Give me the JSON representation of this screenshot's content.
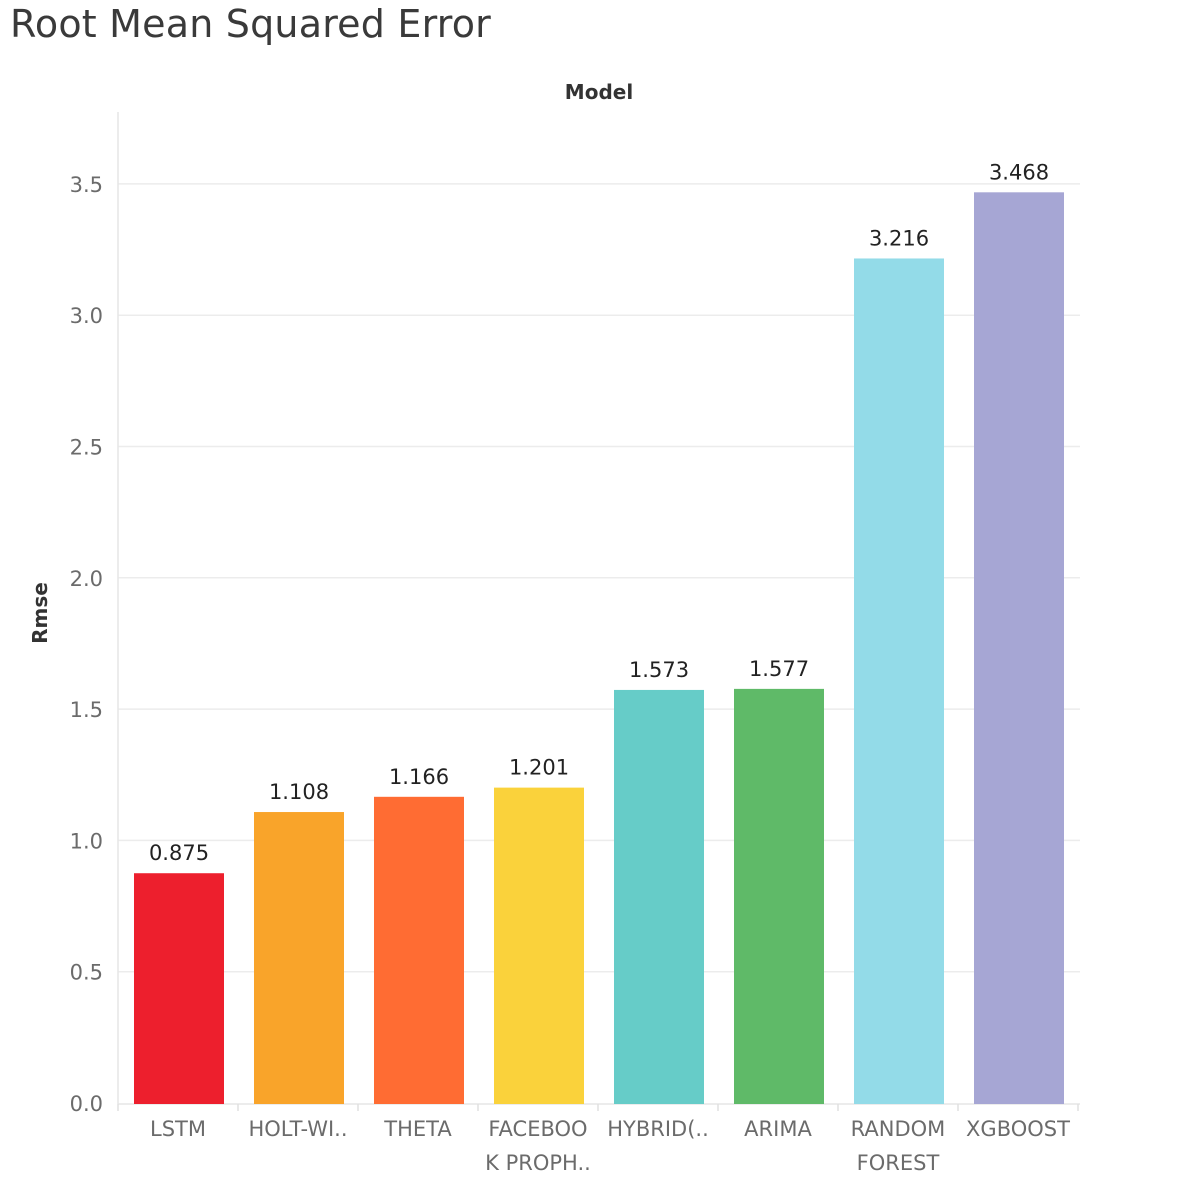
{
  "chart_data": {
    "type": "bar",
    "title": "Root Mean Squared Error",
    "xlabel": "Model",
    "ylabel": "Rmse",
    "categories": [
      [
        "LSTM"
      ],
      [
        "HOLT-WI.."
      ],
      [
        "THETA"
      ],
      [
        "FACEBOO",
        "K PROPH.."
      ],
      [
        "HYBRID(.."
      ],
      [
        "ARIMA"
      ],
      [
        "RANDOM",
        "FOREST"
      ],
      [
        "XGBOOST"
      ]
    ],
    "values": [
      0.875,
      1.108,
      1.166,
      1.201,
      1.573,
      1.577,
      3.216,
      3.468
    ],
    "data_labels": [
      "0.875",
      "1.108",
      "1.166",
      "1.201",
      "1.573",
      "1.577",
      "3.216",
      "3.468"
    ],
    "colors": [
      "#ed1f2d",
      "#f9a42a",
      "#ff6c33",
      "#fad23b",
      "#66ccc8",
      "#5fba68",
      "#93dbe8",
      "#a6a6d4"
    ],
    "yticks": [
      0.0,
      0.5,
      1.0,
      1.5,
      2.0,
      2.5,
      3.0,
      3.5
    ],
    "ytick_labels": [
      "0.0",
      "0.5",
      "1.0",
      "1.5",
      "2.0",
      "2.5",
      "3.0",
      "3.5"
    ],
    "ylim": [
      0,
      3.72
    ],
    "grid": true,
    "legend": "none"
  }
}
